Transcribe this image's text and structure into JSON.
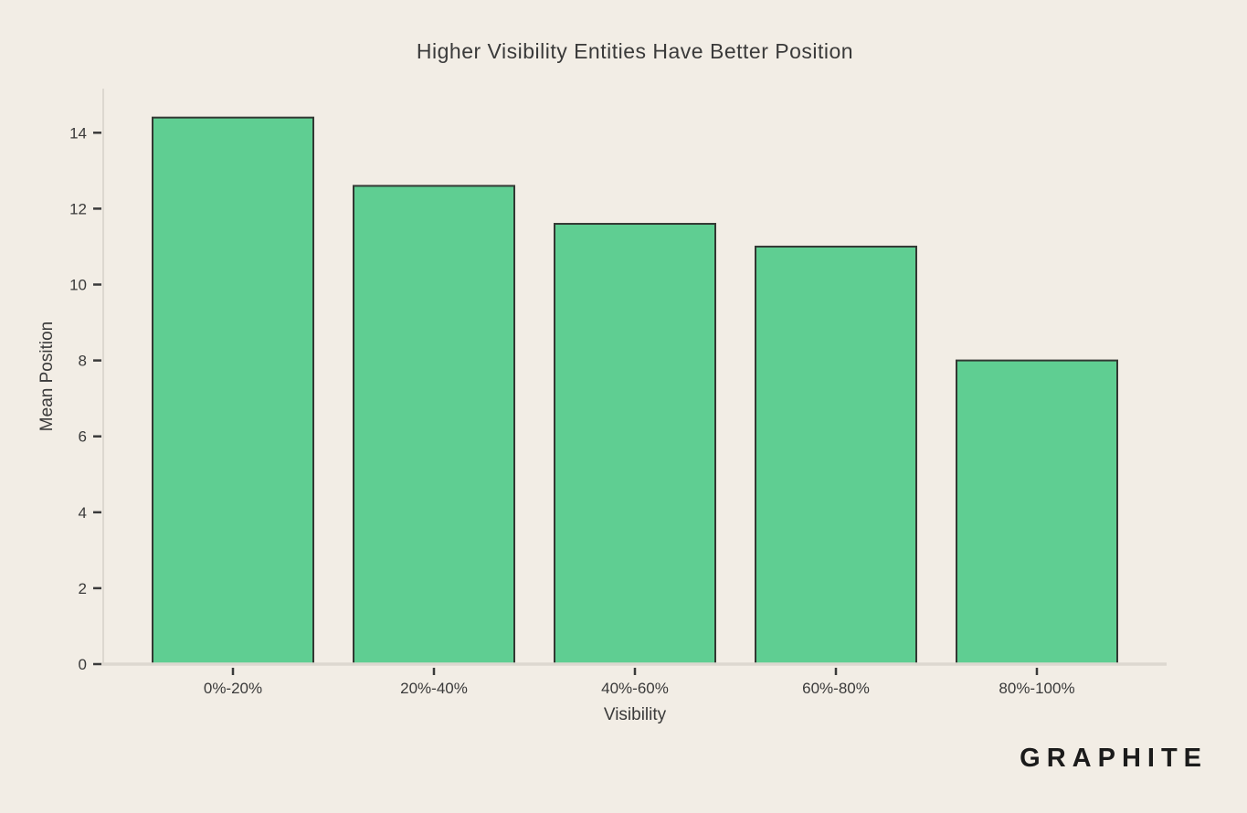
{
  "page": {
    "background_color": "#f2ede5"
  },
  "chart_data": {
    "type": "bar",
    "title": "Higher Visibility Entities Have Better Position",
    "xlabel": "Visibility",
    "ylabel": "Mean Position",
    "categories": [
      "0%-20%",
      "20%-40%",
      "40%-60%",
      "60%-80%",
      "80%-100%"
    ],
    "values": [
      14.4,
      12.6,
      11.6,
      11.0,
      8.0
    ],
    "yticks": [
      0,
      2,
      4,
      6,
      8,
      10,
      12,
      14
    ],
    "ylim": [
      0,
      15.2
    ],
    "grid": false,
    "legend": "none",
    "bar_fill_color": "#5fce92",
    "bar_edge_color": "#333833",
    "spine_color": "#ddd8d0",
    "text_color": "#3a3a3a"
  },
  "branding": {
    "logo_text": "GRAPHITE",
    "logo_color": "#1b1b1b"
  }
}
